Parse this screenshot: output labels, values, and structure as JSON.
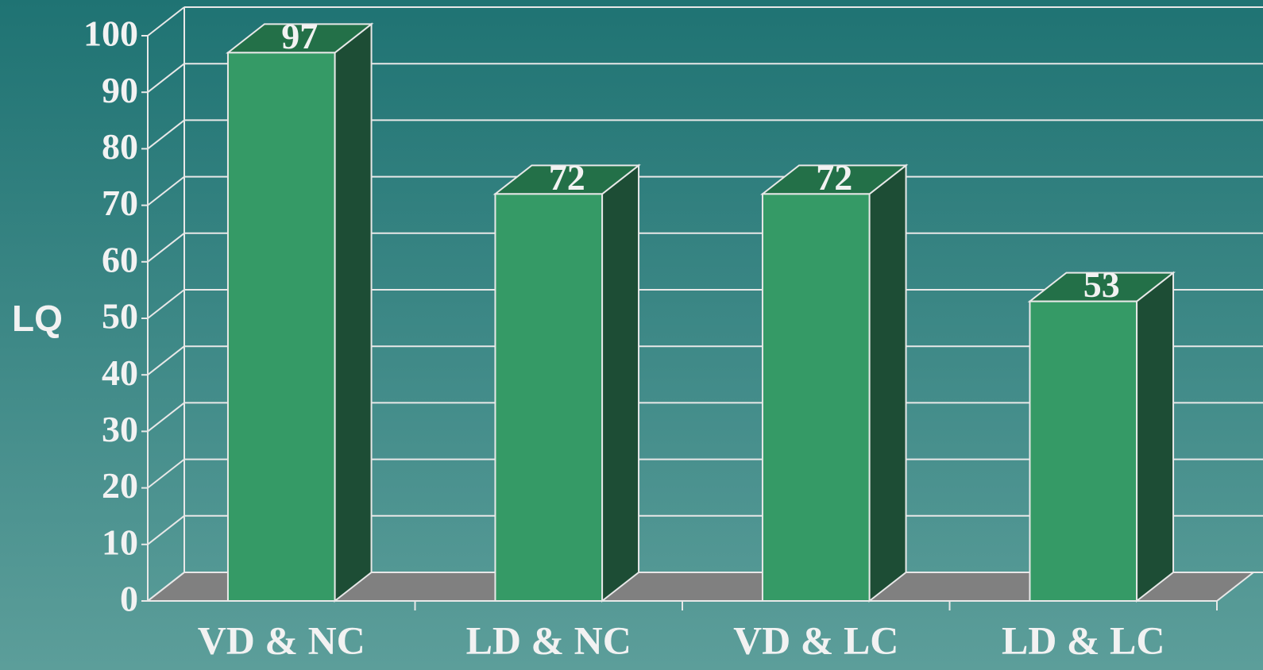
{
  "chart_data": {
    "type": "bar3d",
    "y_label": "LQ",
    "categories": [
      "VD & NC",
      "LD & NC",
      "VD & LC",
      "LD & LC"
    ],
    "values": [
      97,
      72,
      72,
      53
    ],
    "color": "#359a66",
    "ylim": [
      0,
      100
    ],
    "yticks": [
      0,
      10,
      20,
      30,
      40,
      50,
      60,
      70,
      80,
      90,
      100
    ],
    "grid": true
  }
}
